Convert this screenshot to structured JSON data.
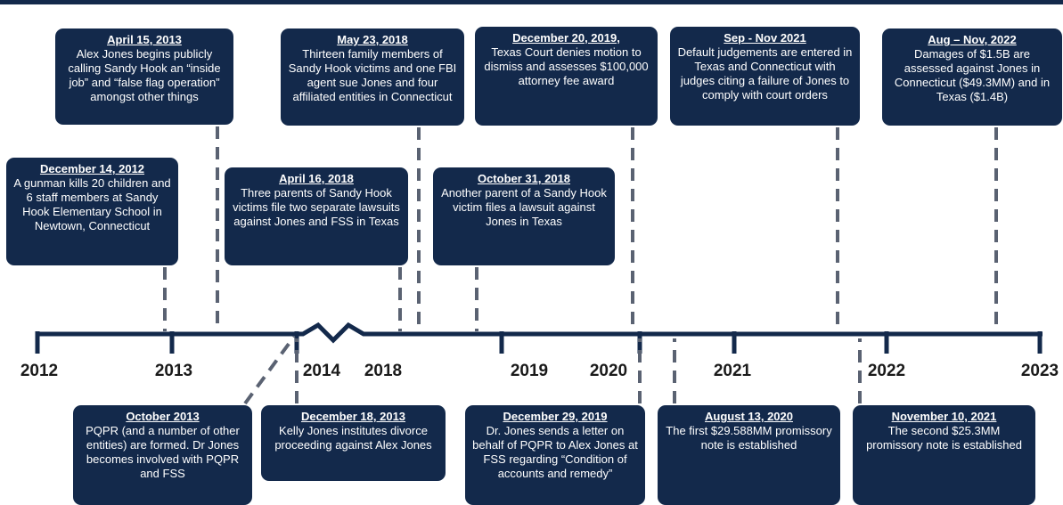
{
  "years": [
    "2012",
    "2013",
    "2014",
    "2018",
    "2019",
    "2020",
    "2021",
    "2022",
    "2023"
  ],
  "events": [
    {
      "date": "April 15, 2013",
      "text": "Alex Jones begins publicly calling Sandy Hook an “inside job” and “false flag operation” amongst other things"
    },
    {
      "date": "May 23, 2018",
      "text": "Thirteen family members of Sandy Hook victims and one FBI agent sue Jones and four affiliated entities in Connecticut"
    },
    {
      "date": "December 20, 2019,",
      "text": "Texas Court denies motion to dismiss and assesses $100,000 attorney fee award"
    },
    {
      "date": "Sep - Nov 2021",
      "text": "Default judgements are entered in Texas and Connecticut with judges citing a failure of Jones to comply with court orders"
    },
    {
      "date": "Aug – Nov, 2022",
      "text": "Damages of $1.5B are assessed against Jones in Connecticut ($49.3MM) and in Texas ($1.4B)"
    },
    {
      "date": "December 14, 2012",
      "text": "A gunman kills 20 children and 6 staff members at Sandy Hook Elementary School in Newtown, Connecticut"
    },
    {
      "date": "April 16, 2018",
      "text": "Three parents of Sandy Hook victims file two separate lawsuits against Jones and FSS in Texas"
    },
    {
      "date": "October 31, 2018",
      "text": "Another parent of a Sandy Hook victim files a lawsuit against Jones in Texas"
    },
    {
      "date": "October 2013",
      "text": "PQPR (and a number of other entities) are formed. Dr Jones becomes involved with PQPR and FSS"
    },
    {
      "date": "December 18, 2013",
      "text": "Kelly Jones institutes divorce proceeding against Alex Jones"
    },
    {
      "date": "December 29, 2019",
      "text": "Dr. Jones sends a letter on behalf of PQPR to Alex Jones at FSS regarding “Condition of accounts and remedy”"
    },
    {
      "date": "August 13, 2020",
      "text": "The first $29.588MM promissory note is established"
    },
    {
      "date": "November 10, 2021",
      "text": "The second $25.3MM promissory note is established"
    }
  ]
}
